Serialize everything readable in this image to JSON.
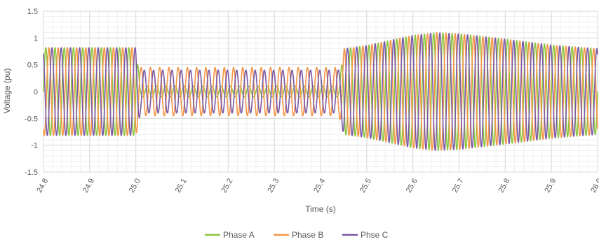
{
  "chart_data": {
    "type": "line",
    "title": "",
    "xlabel": "Time (s)",
    "ylabel": "Voltage (pu)",
    "xlim": [
      24.8,
      26.0
    ],
    "ylim": [
      -1.5,
      1.5
    ],
    "x_ticks": [
      "24.8",
      "24.9",
      "25.0",
      "25.1",
      "25.2",
      "25.3",
      "25.4",
      "25.5",
      "25.6",
      "25.7",
      "25.8",
      "25.9",
      "26.0"
    ],
    "y_ticks": [
      "1.5",
      "1",
      "0.5",
      "0",
      "-0.5",
      "-1",
      "-1.5"
    ],
    "grid": true,
    "minor_grid": true,
    "legend_position": "bottom",
    "frequency_hz": 50,
    "series": [
      {
        "name": "Phase A",
        "color": "#8DC63F",
        "phase_deg": 0,
        "amplitude_envelope": {
          "t": [
            24.8,
            25.0,
            25.01,
            25.44,
            25.45,
            25.5,
            25.6,
            25.65,
            25.7,
            25.8,
            25.9,
            26.0
          ],
          "amp": [
            0.82,
            0.82,
            0.1,
            0.1,
            0.8,
            0.86,
            1.05,
            1.1,
            1.08,
            0.98,
            0.87,
            0.8
          ]
        }
      },
      {
        "name": "Phase B",
        "color": "#F79646",
        "phase_deg": -120,
        "amplitude_envelope": {
          "t": [
            24.8,
            25.0,
            25.01,
            25.44,
            25.45,
            25.5,
            25.6,
            25.65,
            25.7,
            25.8,
            25.9,
            26.0
          ],
          "amp": [
            0.82,
            0.82,
            0.45,
            0.45,
            0.8,
            0.86,
            1.05,
            1.1,
            1.08,
            0.98,
            0.87,
            0.8
          ]
        }
      },
      {
        "name": "Phse C",
        "color": "#7B5AA6",
        "phase_deg": 120,
        "amplitude_envelope": {
          "t": [
            24.8,
            25.0,
            25.01,
            25.44,
            25.45,
            25.5,
            25.6,
            25.65,
            25.7,
            25.8,
            25.9,
            26.0
          ],
          "amp": [
            0.82,
            0.82,
            0.4,
            0.4,
            0.8,
            0.86,
            1.05,
            1.1,
            1.08,
            0.98,
            0.87,
            0.8
          ]
        }
      }
    ]
  }
}
